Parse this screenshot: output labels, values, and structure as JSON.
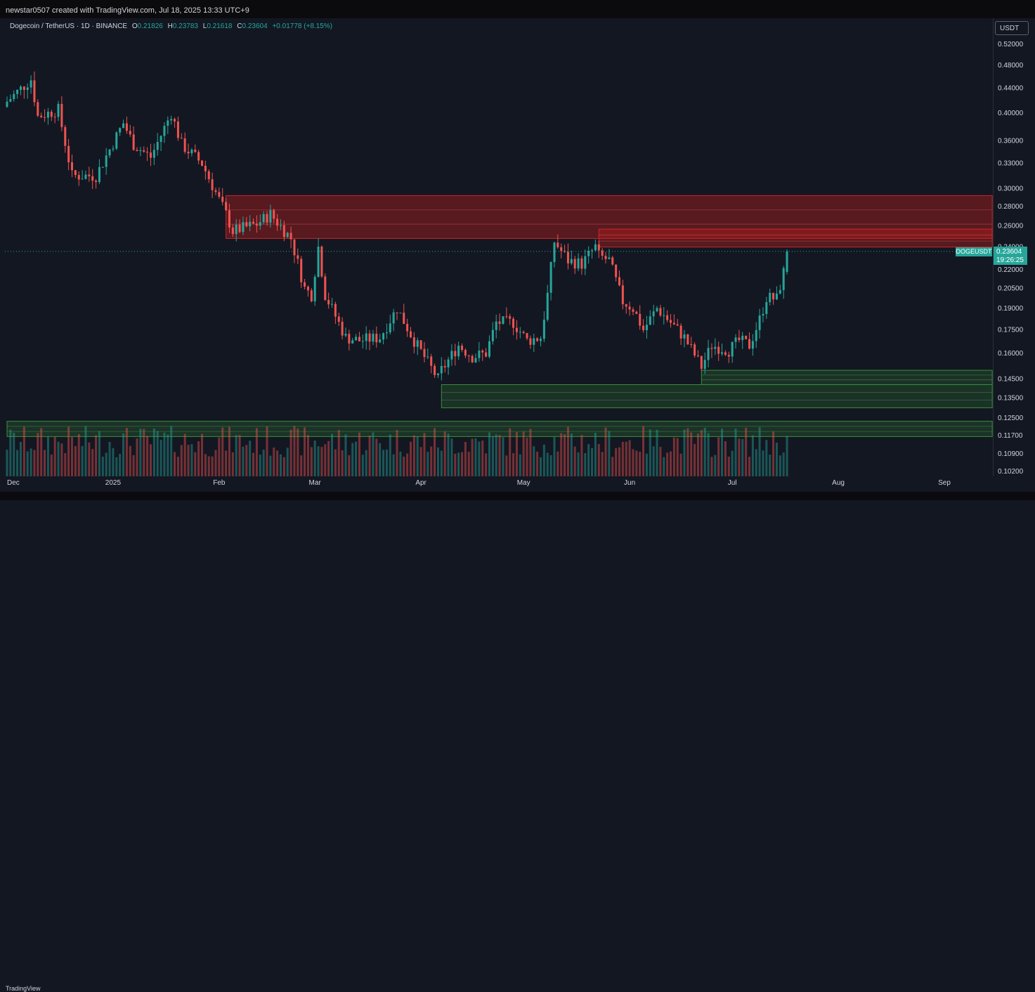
{
  "header": {
    "attribution": "newstar0507 created with TradingView.com, Jul 18, 2025 13:33 UTC+9"
  },
  "legend": {
    "symbol": "Dogecoin / TetherUS · 1D · BINANCE",
    "open_label": "O",
    "open": "0.21826",
    "high_label": "H",
    "high": "0.23783",
    "low_label": "L",
    "low": "0.21618",
    "close_label": "C",
    "close": "0.23604",
    "change": "+0.01778 (+8.15%)"
  },
  "currency": "USDT",
  "price_tag": {
    "symbol": "DOGEUSDT",
    "price": "0.23604",
    "countdown": "19:26:25"
  },
  "footer": {
    "logo": "TradingView"
  },
  "colors": {
    "background": "#131722",
    "up": "#26a69a",
    "down": "#ef5350",
    "resistance": "#b71c1c",
    "support": "#1b5e20"
  },
  "chart_data": {
    "type": "candlestick",
    "scale": "log",
    "ylim": [
      0.1,
      0.56
    ],
    "y_ticks": [
      "0.52000",
      "0.48000",
      "0.44000",
      "0.40000",
      "0.36000",
      "0.33000",
      "0.30000",
      "0.28000",
      "0.26000",
      "0.24000",
      "0.22000",
      "0.20500",
      "0.19000",
      "0.17500",
      "0.16000",
      "0.14500",
      "0.13500",
      "0.12500",
      "0.11700",
      "0.10900",
      "0.10200"
    ],
    "x_ticks": [
      "Dec",
      "2025",
      "Feb",
      "Mar",
      "Apr",
      "May",
      "Jun",
      "Jul",
      "Aug",
      "Sep"
    ],
    "x_tick_dates": [
      "2024-12-01",
      "2025-01-01",
      "2025-02-01",
      "2025-03-01",
      "2025-04-01",
      "2025-05-01",
      "2025-06-01",
      "2025-07-01",
      "2025-08-01",
      "2025-09-01"
    ],
    "current_price": 0.23604,
    "zones": [
      {
        "kind": "resistance",
        "from": "2025-02-03",
        "to": "2025-09-15",
        "low": 0.248,
        "high": 0.292
      },
      {
        "kind": "resistance",
        "from": "2025-05-23",
        "to": "2025-09-15",
        "low": 0.24,
        "high": 0.257
      },
      {
        "kind": "support",
        "from": "2025-04-07",
        "to": "2025-09-15",
        "low": 0.13,
        "high": 0.142
      },
      {
        "kind": "support",
        "from": "2025-06-22",
        "to": "2025-09-15",
        "low": 0.142,
        "high": 0.15
      },
      {
        "kind": "support",
        "from": "2024-12-01",
        "to": "2025-09-15",
        "low": 0.1165,
        "high": 0.1235
      }
    ],
    "path": [
      [
        "2024-12-01",
        0.418
      ],
      [
        "2024-12-08",
        0.455
      ],
      [
        "2024-12-10",
        0.395
      ],
      [
        "2024-12-16",
        0.405
      ],
      [
        "2024-12-20",
        0.315
      ],
      [
        "2024-12-27",
        0.315
      ],
      [
        "2025-01-04",
        0.385
      ],
      [
        "2025-01-07",
        0.355
      ],
      [
        "2025-01-12",
        0.338
      ],
      [
        "2025-01-18",
        0.4
      ],
      [
        "2025-01-21",
        0.355
      ],
      [
        "2025-01-27",
        0.33
      ],
      [
        "2025-02-03",
        0.272
      ],
      [
        "2025-02-05",
        0.255
      ],
      [
        "2025-02-12",
        0.262
      ],
      [
        "2025-02-16",
        0.272
      ],
      [
        "2025-02-22",
        0.248
      ],
      [
        "2025-02-26",
        0.205
      ],
      [
        "2025-02-28",
        0.2
      ],
      [
        "2025-03-02",
        0.24
      ],
      [
        "2025-03-04",
        0.2
      ],
      [
        "2025-03-10",
        0.17
      ],
      [
        "2025-03-14",
        0.168
      ],
      [
        "2025-03-20",
        0.17
      ],
      [
        "2025-03-25",
        0.19
      ],
      [
        "2025-03-30",
        0.168
      ],
      [
        "2025-04-06",
        0.145
      ],
      [
        "2025-04-07",
        0.15
      ],
      [
        "2025-04-12",
        0.165
      ],
      [
        "2025-04-16",
        0.158
      ],
      [
        "2025-04-20",
        0.16
      ],
      [
        "2025-04-23",
        0.18
      ],
      [
        "2025-04-28",
        0.18
      ],
      [
        "2025-05-02",
        0.168
      ],
      [
        "2025-05-06",
        0.17
      ],
      [
        "2025-05-08",
        0.2
      ],
      [
        "2025-05-10",
        0.245
      ],
      [
        "2025-05-14",
        0.228
      ],
      [
        "2025-05-18",
        0.225
      ],
      [
        "2025-05-22",
        0.24
      ],
      [
        "2025-05-23",
        0.232
      ],
      [
        "2025-05-26",
        0.228
      ],
      [
        "2025-05-30",
        0.195
      ],
      [
        "2025-06-02",
        0.19
      ],
      [
        "2025-06-05",
        0.175
      ],
      [
        "2025-06-09",
        0.19
      ],
      [
        "2025-06-13",
        0.18
      ],
      [
        "2025-06-17",
        0.17
      ],
      [
        "2025-06-22",
        0.152
      ],
      [
        "2025-06-25",
        0.165
      ],
      [
        "2025-06-30",
        0.162
      ],
      [
        "2025-07-03",
        0.168
      ],
      [
        "2025-07-06",
        0.165
      ],
      [
        "2025-07-09",
        0.182
      ],
      [
        "2025-07-11",
        0.198
      ],
      [
        "2025-07-14",
        0.197
      ],
      [
        "2025-07-16",
        0.218
      ],
      [
        "2025-07-17",
        0.236
      ]
    ]
  }
}
